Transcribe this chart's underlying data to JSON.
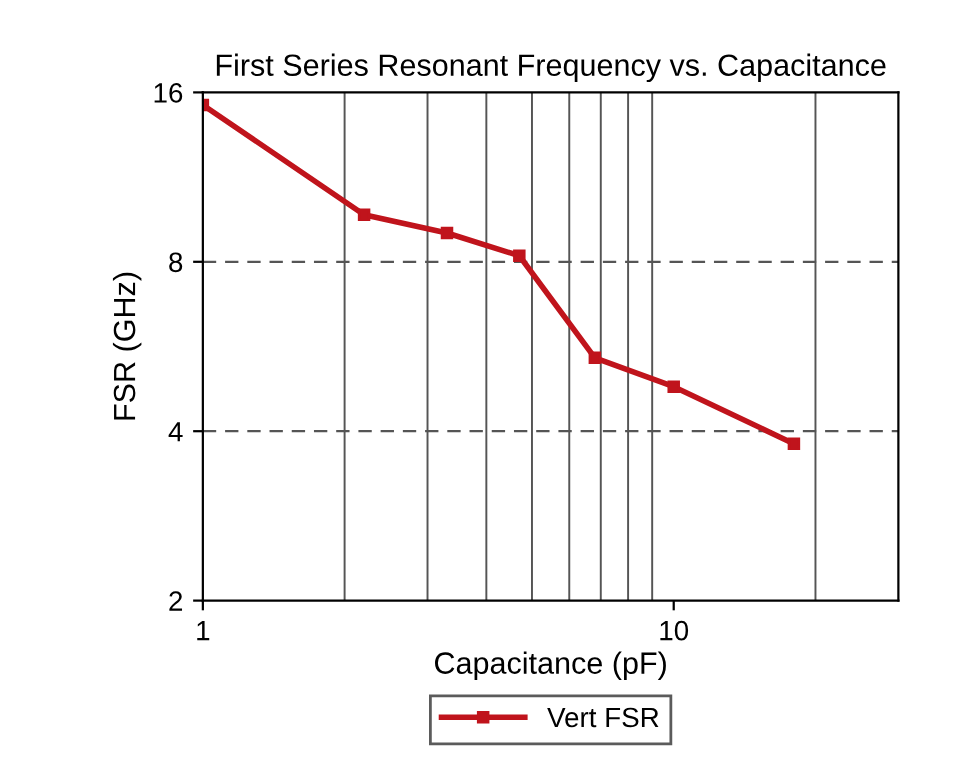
{
  "chart_data": {
    "type": "line",
    "title": "First Series Resonant Frequency vs. Capacitance",
    "xlabel": "Capacitance (pF)",
    "ylabel": "FSR (GHz)",
    "x": [
      1,
      2.2,
      3.3,
      4.7,
      6.8,
      10,
      18
    ],
    "series": [
      {
        "name": "Vert FSR",
        "color": "#c0141c",
        "values": [
          15.2,
          9.7,
          9.0,
          8.2,
          5.4,
          4.8,
          3.8
        ]
      }
    ],
    "log": "xy",
    "xlim": [
      1,
      30
    ],
    "ylim": [
      2,
      16
    ],
    "xticks": [
      1,
      10
    ],
    "yticks": [
      2,
      4,
      8,
      16
    ],
    "grid": true,
    "legend": "bottom",
    "marker": "square",
    "line_style": "solid"
  }
}
